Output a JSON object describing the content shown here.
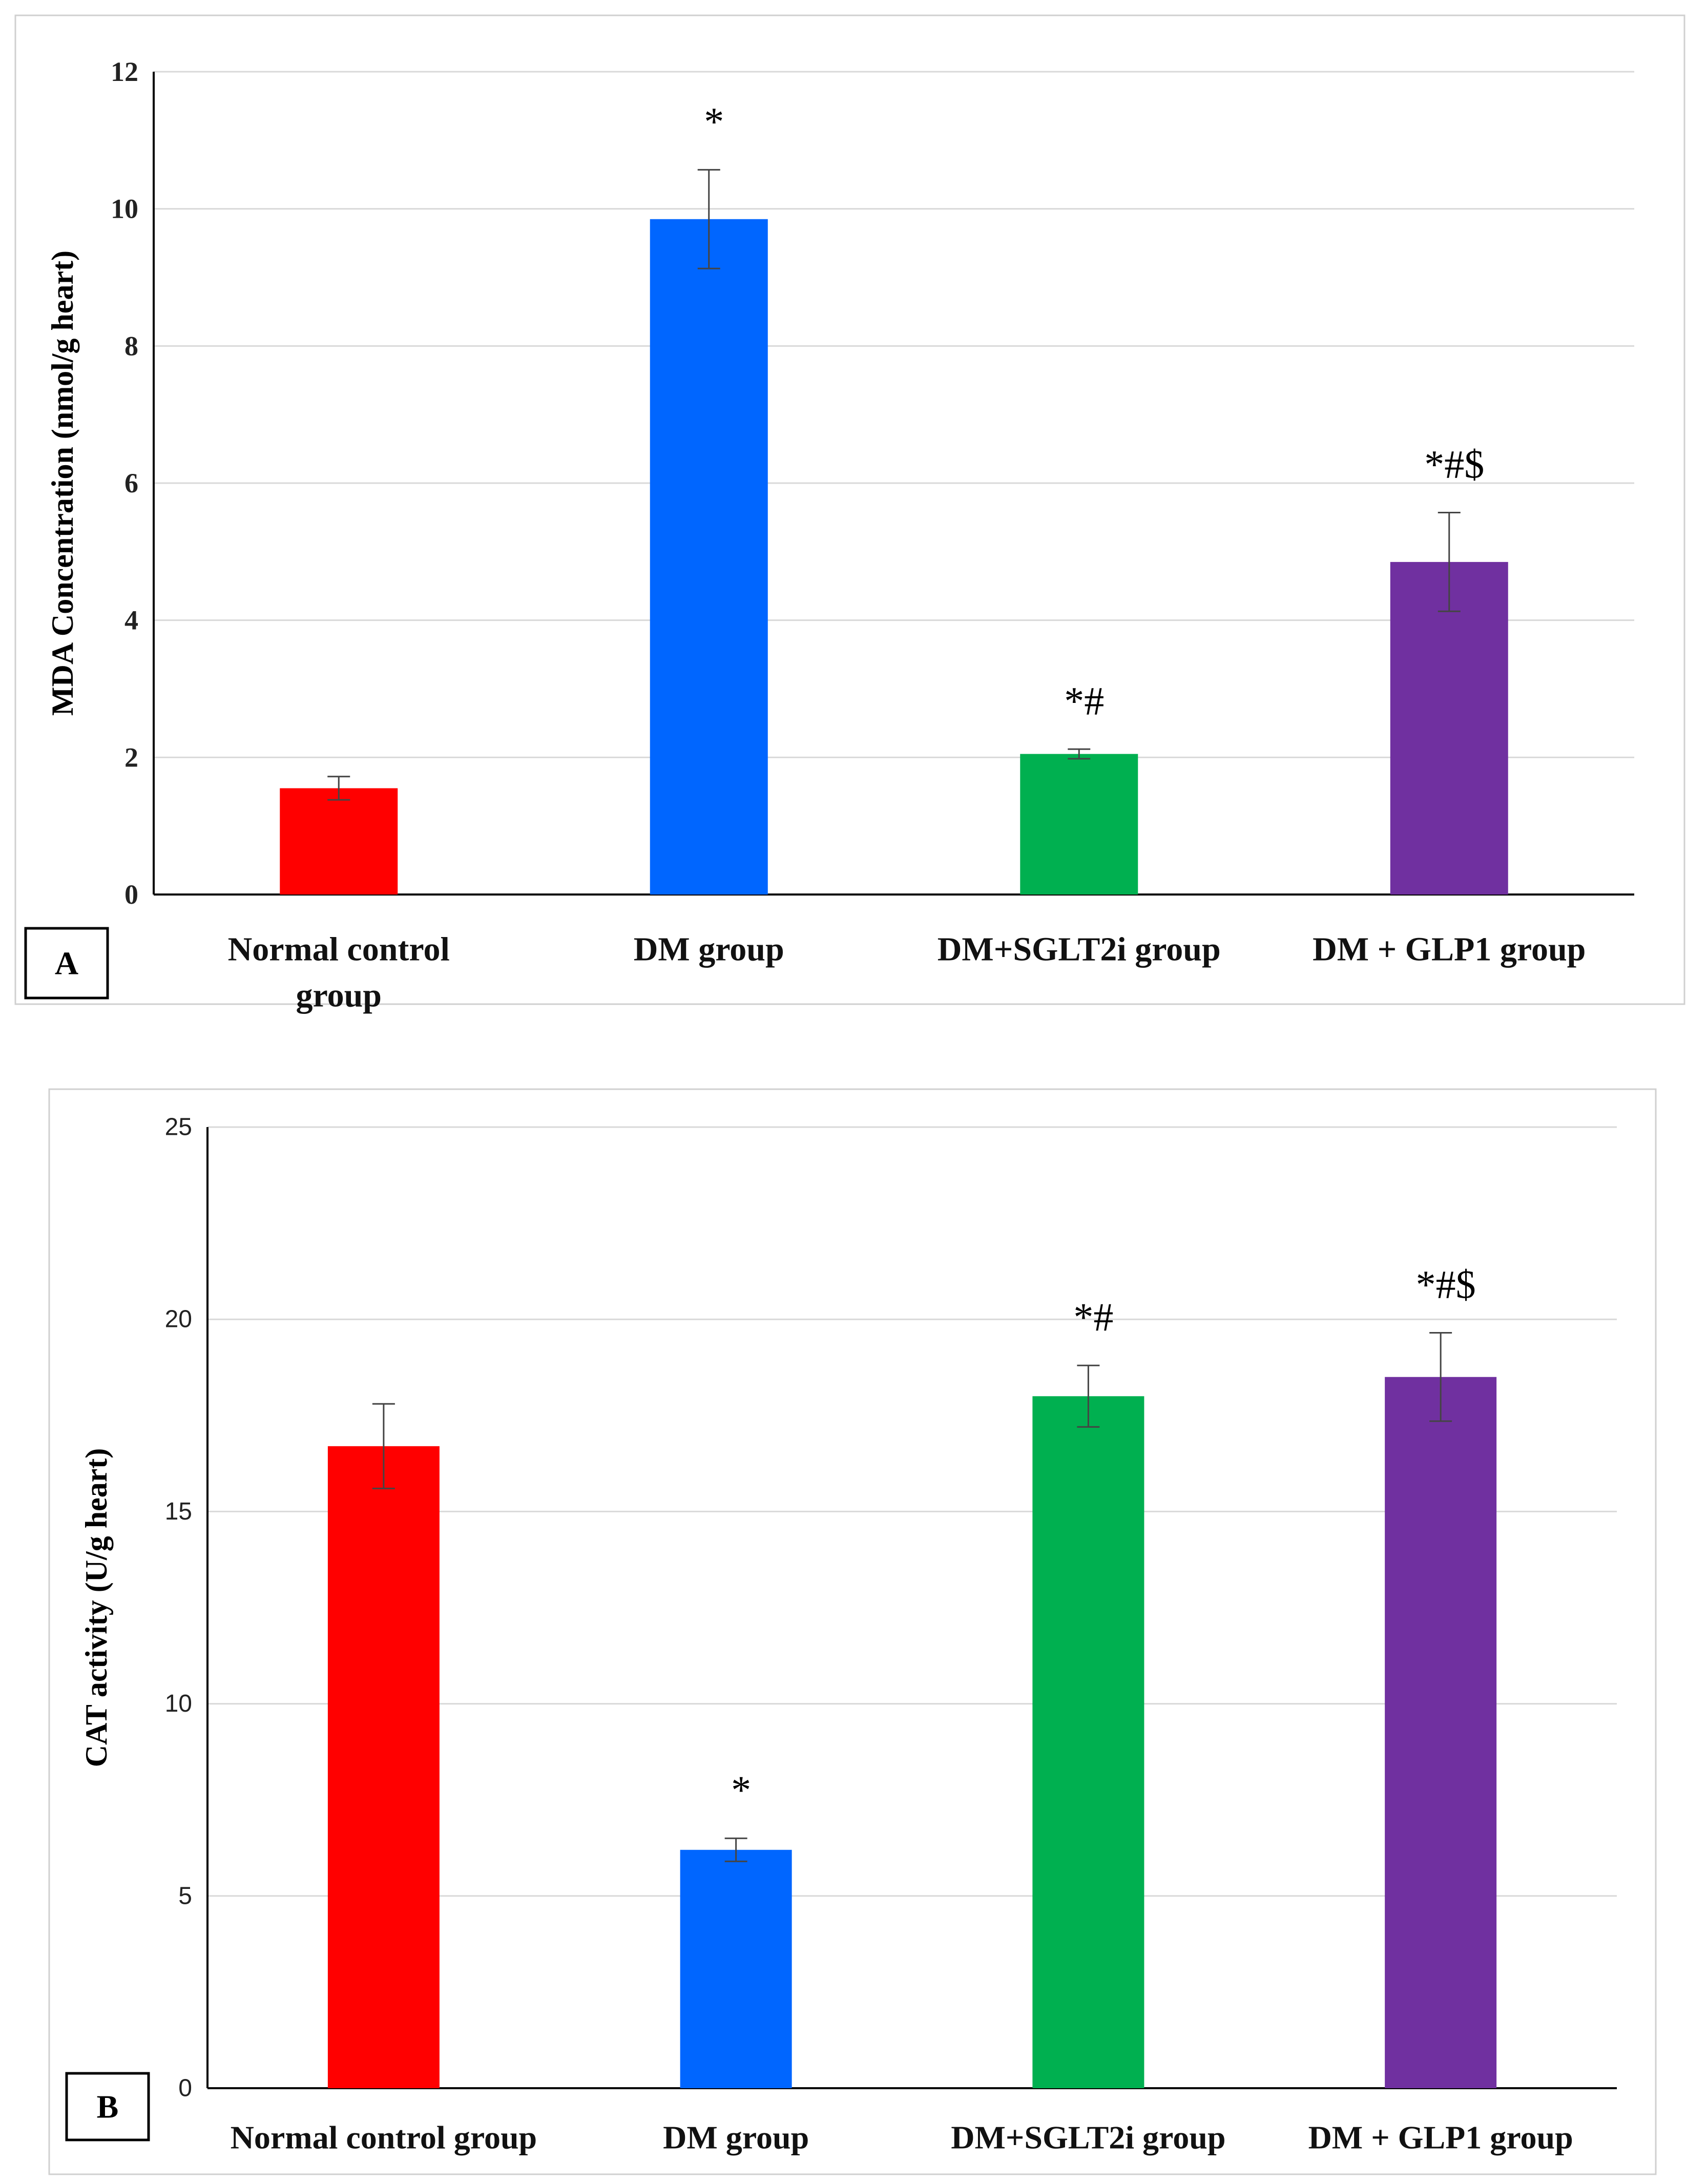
{
  "chart_data": [
    {
      "type": "bar",
      "panel_label": "A",
      "categories": [
        "Normal control group",
        "DM group",
        "DM+SGLT2i group",
        "DM + GLP1 group"
      ],
      "category_lines": [
        [
          "Normal control",
          "group"
        ],
        [
          "DM group"
        ],
        [
          "DM+SGLT2i group"
        ],
        [
          "DM + GLP1 group"
        ]
      ],
      "values": [
        1.55,
        9.85,
        2.05,
        4.85
      ],
      "errors": [
        0.17,
        0.72,
        0.07,
        0.72
      ],
      "annotations": [
        "",
        "*",
        "*#",
        "*#$"
      ],
      "colors": [
        "#ff0000",
        "#0066ff",
        "#00b050",
        "#7030a0"
      ],
      "title": "",
      "xlabel": "",
      "ylabel": "MDA Concentration (nmol/g heart)",
      "ylim": [
        0,
        12
      ],
      "yticks": [
        0,
        2,
        4,
        6,
        8,
        10,
        12
      ],
      "grid": true
    },
    {
      "type": "bar",
      "panel_label": "B",
      "categories": [
        "Normal control group",
        "DM group",
        "DM+SGLT2i group",
        "DM + GLP1  group"
      ],
      "category_lines": [
        [
          "Normal control group"
        ],
        [
          "DM group"
        ],
        [
          "DM+SGLT2i group"
        ],
        [
          "DM + GLP1  group"
        ]
      ],
      "values": [
        16.7,
        6.2,
        18.0,
        18.5
      ],
      "errors": [
        1.1,
        0.3,
        0.8,
        1.15
      ],
      "annotations": [
        "",
        "*",
        "*#",
        "*#$"
      ],
      "colors": [
        "#ff0000",
        "#0066ff",
        "#00b050",
        "#7030a0"
      ],
      "title": "",
      "xlabel": "",
      "ylabel": "CAT activity (U/g heart)",
      "ylim": [
        0,
        25
      ],
      "yticks": [
        0,
        5,
        10,
        15,
        20,
        25
      ],
      "grid": true
    }
  ]
}
